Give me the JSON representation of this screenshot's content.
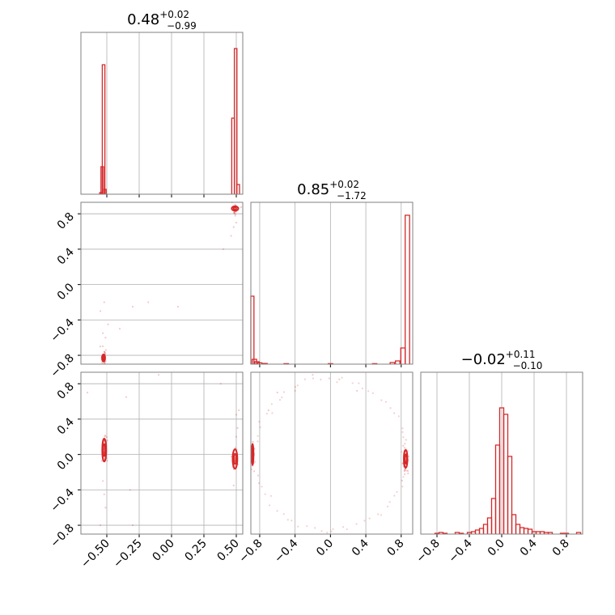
{
  "figure": {
    "background": "#ffffff",
    "accent": "#d62728",
    "grid_color": "#b0b0b0",
    "frame_color": "#808080"
  },
  "chart_data": [
    {
      "panel": "hist-param-1",
      "type": "histogram",
      "title": {
        "median": "0.48",
        "plus": "+0.02",
        "minus": "−0.99"
      },
      "xlim": [
        -0.7,
        0.55
      ],
      "ylim": [
        0,
        1.0
      ],
      "bins": [
        {
          "x": -0.545,
          "y": 0.01
        },
        {
          "x": -0.535,
          "y": 0.17
        },
        {
          "x": -0.525,
          "y": 0.8
        },
        {
          "x": -0.515,
          "y": 0.03
        },
        {
          "x": 0.475,
          "y": 0.47
        },
        {
          "x": 0.495,
          "y": 0.9
        },
        {
          "x": 0.515,
          "y": 0.06
        }
      ],
      "bin_width": 0.02,
      "xticks": [
        "−0.50",
        "−0.25",
        "0.00",
        "0.25",
        "0.50"
      ],
      "xtick_values": [
        -0.5,
        -0.25,
        0.0,
        0.25,
        0.5
      ],
      "grid": true
    },
    {
      "panel": "hist-param-2",
      "type": "histogram",
      "title": {
        "median": "0.85",
        "plus": "+0.02",
        "minus": "−1.72"
      },
      "xlim": [
        -0.9,
        0.93
      ],
      "ylim": [
        0,
        1.0
      ],
      "bins": [
        {
          "x": -0.89,
          "y": 0.42
        },
        {
          "x": -0.86,
          "y": 0.03
        },
        {
          "x": -0.83,
          "y": 0.015
        },
        {
          "x": -0.8,
          "y": 0.008
        },
        {
          "x": -0.74,
          "y": 0.004
        },
        {
          "x": -0.5,
          "y": 0.003
        },
        {
          "x": 0.0,
          "y": 0.003
        },
        {
          "x": 0.5,
          "y": 0.003
        },
        {
          "x": 0.7,
          "y": 0.01
        },
        {
          "x": 0.76,
          "y": 0.02
        },
        {
          "x": 0.82,
          "y": 0.1
        },
        {
          "x": 0.87,
          "y": 0.92
        }
      ],
      "bin_width": 0.05,
      "xticks": [
        "−0.8",
        "−0.4",
        "0.0",
        "0.4",
        "0.8"
      ],
      "xtick_values": [
        -0.8,
        -0.4,
        0.0,
        0.4,
        0.8
      ],
      "grid": true
    },
    {
      "panel": "hist-param-3",
      "type": "histogram",
      "title": {
        "median": "−0.02",
        "plus": "+0.11",
        "minus": "−0.10"
      },
      "xlim": [
        -1.0,
        1.0
      ],
      "ylim": [
        0,
        1.0
      ],
      "bins": [
        {
          "x": -0.8,
          "y": 0.005
        },
        {
          "x": -0.75,
          "y": 0.01
        },
        {
          "x": -0.7,
          "y": 0.005
        },
        {
          "x": -0.55,
          "y": 0.01
        },
        {
          "x": -0.5,
          "y": 0.005
        },
        {
          "x": -0.4,
          "y": 0.01
        },
        {
          "x": -0.35,
          "y": 0.015
        },
        {
          "x": -0.3,
          "y": 0.025
        },
        {
          "x": -0.25,
          "y": 0.035
        },
        {
          "x": -0.2,
          "y": 0.06
        },
        {
          "x": -0.15,
          "y": 0.1
        },
        {
          "x": -0.1,
          "y": 0.22
        },
        {
          "x": -0.05,
          "y": 0.55
        },
        {
          "x": 0.0,
          "y": 0.78
        },
        {
          "x": 0.05,
          "y": 0.74
        },
        {
          "x": 0.1,
          "y": 0.48
        },
        {
          "x": 0.15,
          "y": 0.12
        },
        {
          "x": 0.2,
          "y": 0.06
        },
        {
          "x": 0.25,
          "y": 0.04
        },
        {
          "x": 0.3,
          "y": 0.035
        },
        {
          "x": 0.35,
          "y": 0.03
        },
        {
          "x": 0.4,
          "y": 0.015
        },
        {
          "x": 0.45,
          "y": 0.015
        },
        {
          "x": 0.5,
          "y": 0.015
        },
        {
          "x": 0.55,
          "y": 0.01
        },
        {
          "x": 0.6,
          "y": 0.01
        },
        {
          "x": 0.75,
          "y": 0.005
        },
        {
          "x": 0.8,
          "y": 0.005
        },
        {
          "x": 0.95,
          "y": 0.01
        }
      ],
      "bin_width": 0.05,
      "xticks": [
        "−0.8",
        "−0.4",
        "0.0",
        "0.4",
        "0.8"
      ],
      "xtick_values": [
        -0.8,
        -0.4,
        0.0,
        0.4,
        0.8
      ],
      "grid": true
    },
    {
      "panel": "scatter-p1-p2",
      "type": "scatter",
      "xlim": [
        -0.7,
        0.55
      ],
      "ylim": [
        -0.9,
        0.93
      ],
      "clusters": [
        {
          "x": 0.49,
          "y": 0.86,
          "sx": 0.012,
          "sy": 0.04,
          "n": 40,
          "contour": [
            0.025,
            0.025
          ]
        },
        {
          "x": -0.525,
          "y": -0.83,
          "sx": 0.01,
          "sy": 0.04,
          "n": 35,
          "contour": [
            0.012,
            0.04
          ]
        }
      ],
      "outliers": [
        [
          -0.55,
          -0.3
        ],
        [
          -0.52,
          -0.2
        ],
        [
          -0.49,
          -0.45
        ],
        [
          -0.4,
          -0.5
        ],
        [
          -0.3,
          -0.25
        ],
        [
          -0.18,
          -0.2
        ],
        [
          0.05,
          -0.25
        ],
        [
          0.4,
          0.4
        ],
        [
          0.46,
          0.55
        ],
        [
          0.5,
          0.7
        ],
        [
          0.48,
          0.65
        ],
        [
          -0.53,
          -0.55
        ],
        [
          -0.51,
          -0.6
        ],
        [
          -0.55,
          -0.7
        ]
      ],
      "yticks": [
        "−0.8",
        "−0.4",
        "0.0",
        "0.4",
        "0.8"
      ],
      "ytick_values": [
        -0.8,
        -0.4,
        0.0,
        0.4,
        0.8
      ],
      "grid": true
    },
    {
      "panel": "scatter-p1-p3",
      "type": "scatter",
      "xlim": [
        -0.7,
        0.55
      ],
      "ylim": [
        -0.9,
        0.93
      ],
      "clusters": [
        {
          "x": -0.52,
          "y": 0.05,
          "sx": 0.01,
          "sy": 0.08,
          "n": 40,
          "contour": [
            0.015,
            0.13
          ]
        },
        {
          "x": 0.49,
          "y": -0.05,
          "sx": 0.012,
          "sy": 0.07,
          "n": 40,
          "contour": [
            0.018,
            0.11
          ]
        }
      ],
      "outliers": [
        [
          -0.53,
          -0.3
        ],
        [
          -0.52,
          -0.45
        ],
        [
          -0.51,
          -0.6
        ],
        [
          -0.55,
          -0.8
        ],
        [
          -0.3,
          -0.8
        ],
        [
          -0.32,
          -0.4
        ],
        [
          -0.35,
          0.65
        ],
        [
          -0.1,
          0.9
        ],
        [
          0.38,
          0.8
        ],
        [
          0.5,
          0.45
        ],
        [
          0.51,
          0.3
        ],
        [
          0.52,
          0.5
        ],
        [
          0.5,
          0.2
        ],
        [
          -0.65,
          0.7
        ],
        [
          0.48,
          -0.35
        ]
      ],
      "xticks": [
        "−0.50",
        "−0.25",
        "0.00",
        "0.25",
        "0.50"
      ],
      "xtick_values": [
        -0.5,
        -0.25,
        0.0,
        0.25,
        0.5
      ],
      "yticks": [
        "−0.8",
        "−0.4",
        "0.0",
        "0.4",
        "0.8"
      ],
      "ytick_values": [
        -0.8,
        -0.4,
        0.0,
        0.4,
        0.8
      ],
      "grid": true
    },
    {
      "panel": "scatter-p2-p3",
      "type": "scatter",
      "xlim": [
        -0.9,
        0.93
      ],
      "ylim": [
        -0.9,
        0.93
      ],
      "clusters": [
        {
          "x": -0.88,
          "y": 0.0,
          "sx": 0.01,
          "sy": 0.08,
          "n": 30,
          "contour": [
            0.01,
            0.12
          ]
        },
        {
          "x": 0.85,
          "y": -0.05,
          "sx": 0.015,
          "sy": 0.07,
          "n": 40,
          "contour": [
            0.02,
            0.1
          ]
        }
      ],
      "arc": {
        "center": [
          0.0,
          0.0
        ],
        "radius": 0.86,
        "n": 70
      },
      "outliers": [
        [
          -0.6,
          0.7
        ],
        [
          -0.4,
          0.72
        ],
        [
          -0.2,
          0.9
        ],
        [
          0.1,
          0.85
        ],
        [
          0.3,
          0.72
        ],
        [
          -0.7,
          0.5
        ]
      ],
      "xticks": [
        "−0.8",
        "−0.4",
        "0.0",
        "0.4",
        "0.8"
      ],
      "xtick_values": [
        -0.8,
        -0.4,
        0.0,
        0.4,
        0.8
      ],
      "grid": true
    }
  ]
}
